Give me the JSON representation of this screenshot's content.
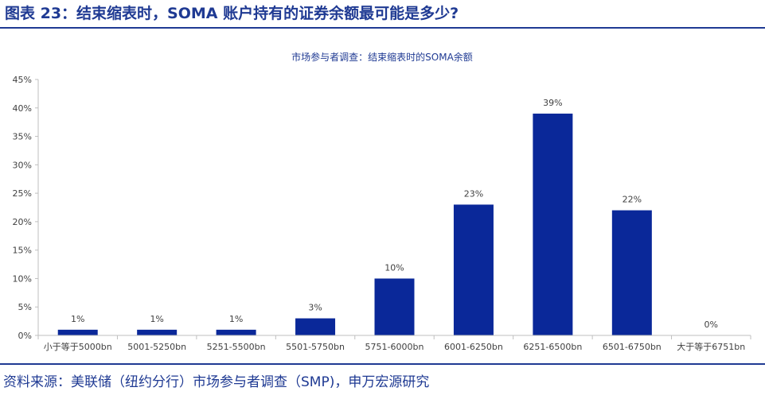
{
  "figure": {
    "title": "图表 23：结束缩表时，SOMA 账户持有的证券余额最可能是多少?",
    "source": "资料来源：美联储（纽约分行）市场参与者调查（SMP)，申万宏源研究"
  },
  "colors": {
    "bar": "#0a2899",
    "title": "#1f3a93",
    "axis": "#bfbfbf",
    "text": "#404040",
    "chart_title": "#1f3a93"
  },
  "chart_data": {
    "type": "bar",
    "title": "市场参与者调查：结束缩表时的SOMA余额",
    "xlabel": "",
    "ylabel": "",
    "ylim": [
      0,
      45
    ],
    "yticks": [
      0,
      5,
      10,
      15,
      20,
      25,
      30,
      35,
      40,
      45
    ],
    "ytick_labels": [
      "0%",
      "5%",
      "10%",
      "15%",
      "20%",
      "25%",
      "30%",
      "35%",
      "40%",
      "45%"
    ],
    "grid": false,
    "categories": [
      "小于等于5000bn",
      "5001-5250bn",
      "5251-5500bn",
      "5501-5750bn",
      "5751-6000bn",
      "6001-6250bn",
      "6251-6500bn",
      "6501-6750bn",
      "大于等于6751bn"
    ],
    "values": [
      1,
      1,
      1,
      3,
      10,
      23,
      39,
      22,
      0
    ],
    "data_labels": [
      "1%",
      "1%",
      "1%",
      "3%",
      "10%",
      "23%",
      "39%",
      "22%",
      "0%"
    ]
  }
}
